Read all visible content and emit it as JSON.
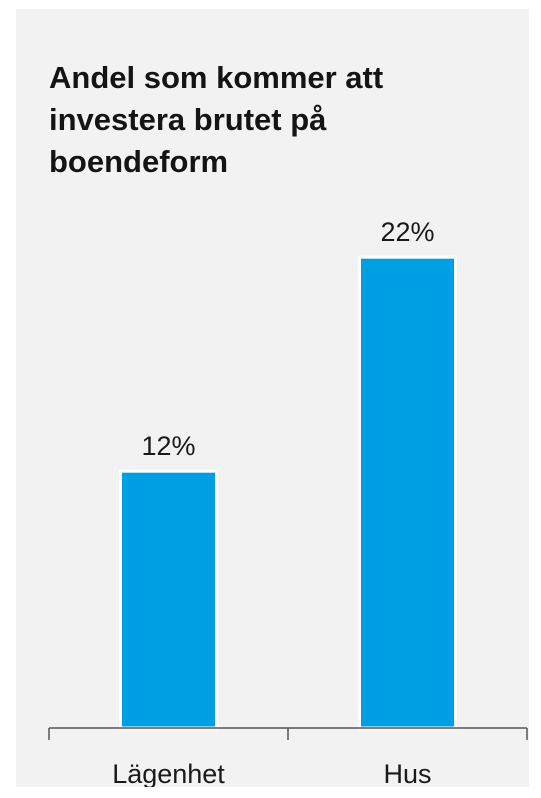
{
  "chart_data": {
    "type": "bar",
    "title": "Andel som kommer att investera brutet på boendeform",
    "categories": [
      "Lägenhet",
      "Hus"
    ],
    "values": [
      12,
      22
    ],
    "value_labels": [
      "12%",
      "22%"
    ],
    "unit": "%",
    "ylim": [
      0,
      25
    ],
    "grid": false,
    "legend": "none",
    "colors": {
      "bar": "#009fe3",
      "bar_outline": "#ffffff",
      "panel": "#f2f2f2",
      "axis": "#555555",
      "text": "#1a1a1a"
    }
  }
}
